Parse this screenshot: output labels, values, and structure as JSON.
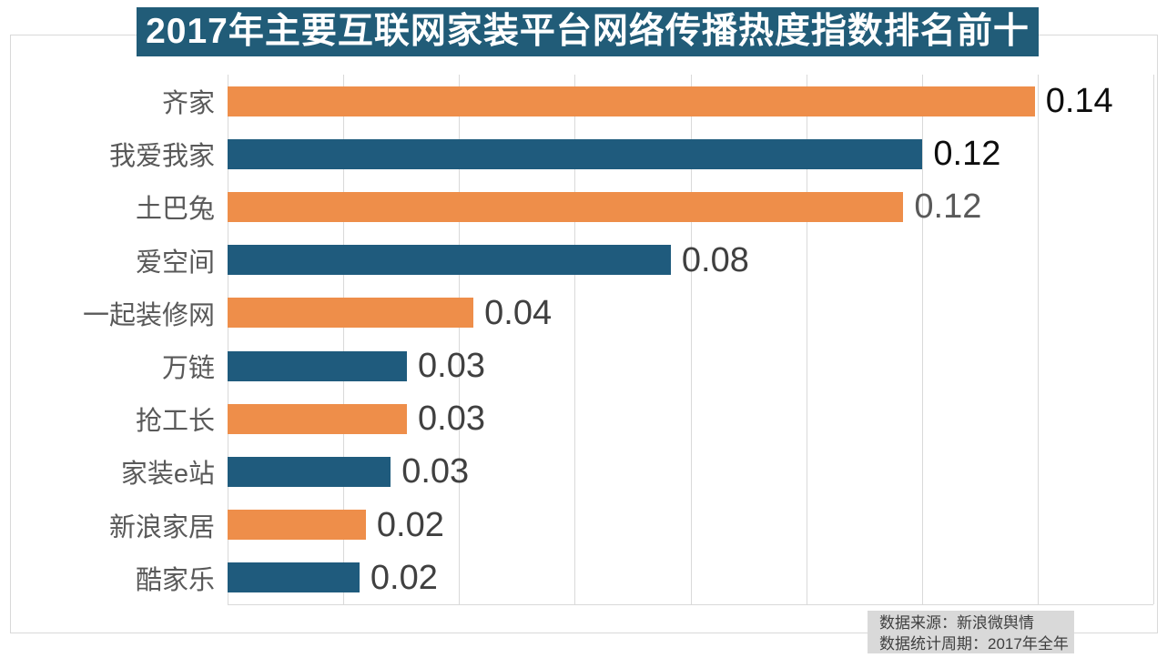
{
  "title": {
    "text": "2017年主要互联网家装平台网络传播热度指数排名前十"
  },
  "source": {
    "line1": "数据来源：新浪微舆情",
    "line2": "数据统计周期：2017年全年"
  },
  "colors": {
    "banner_bg": "#215c78",
    "bar_orange": "#ee8e4a",
    "bar_blue": "#1f5b7d",
    "grid": "#d9d9d9",
    "category_label": "#595959",
    "source_bg": "#d9d9d9",
    "source_text": "#404040"
  },
  "chart_data": {
    "type": "bar",
    "orientation": "horizontal",
    "title": "2017年主要互联网家装平台网络传播热度指数排名前十",
    "categories": [
      "齐家",
      "我爱我家",
      "土巴兔",
      "爱空间",
      "一起装修网",
      "万链",
      "抢工长",
      "家装e站",
      "新浪家居",
      "酷家乐"
    ],
    "values": [
      0.14,
      0.12,
      0.12,
      0.08,
      0.04,
      0.03,
      0.03,
      0.03,
      0.02,
      0.02
    ],
    "xlim": [
      0,
      0.16
    ],
    "tick_step": 0.02,
    "grid": "vertical gridlines, no x tick labels",
    "legend": "none",
    "bars": [
      {
        "category": "齐家",
        "value": 0.14,
        "value_label": "0.14",
        "bar_length_est": 0.1395,
        "color": "#ee8e4a",
        "label_color": "#0d0d0d"
      },
      {
        "category": "我爱我家",
        "value": 0.12,
        "value_label": "0.12",
        "bar_length_est": 0.1201,
        "color": "#1f5b7d",
        "label_color": "#0d0d0d"
      },
      {
        "category": "土巴兔",
        "value": 0.12,
        "value_label": "0.12",
        "bar_length_est": 0.1168,
        "color": "#ee8e4a",
        "label_color": "#595959"
      },
      {
        "category": "爱空间",
        "value": 0.08,
        "value_label": "0.08",
        "bar_length_est": 0.0766,
        "color": "#1f5b7d",
        "label_color": "#404040"
      },
      {
        "category": "一起装修网",
        "value": 0.04,
        "value_label": "0.04",
        "bar_length_est": 0.0425,
        "color": "#ee8e4a",
        "label_color": "#404040"
      },
      {
        "category": "万链",
        "value": 0.03,
        "value_label": "0.03",
        "bar_length_est": 0.031,
        "color": "#1f5b7d",
        "label_color": "#404040"
      },
      {
        "category": "抢工长",
        "value": 0.03,
        "value_label": "0.03",
        "bar_length_est": 0.031,
        "color": "#ee8e4a",
        "label_color": "#404040"
      },
      {
        "category": "家装e站",
        "value": 0.03,
        "value_label": "0.03",
        "bar_length_est": 0.0282,
        "color": "#1f5b7d",
        "label_color": "#404040"
      },
      {
        "category": "新浪家居",
        "value": 0.02,
        "value_label": "0.02",
        "bar_length_est": 0.0239,
        "color": "#ee8e4a",
        "label_color": "#404040"
      },
      {
        "category": "酷家乐",
        "value": 0.02,
        "value_label": "0.02",
        "bar_length_est": 0.0228,
        "color": "#1f5b7d",
        "label_color": "#404040"
      }
    ],
    "source_lines": [
      "数据来源：新浪微舆情",
      "数据统计周期：2017年全年"
    ]
  }
}
